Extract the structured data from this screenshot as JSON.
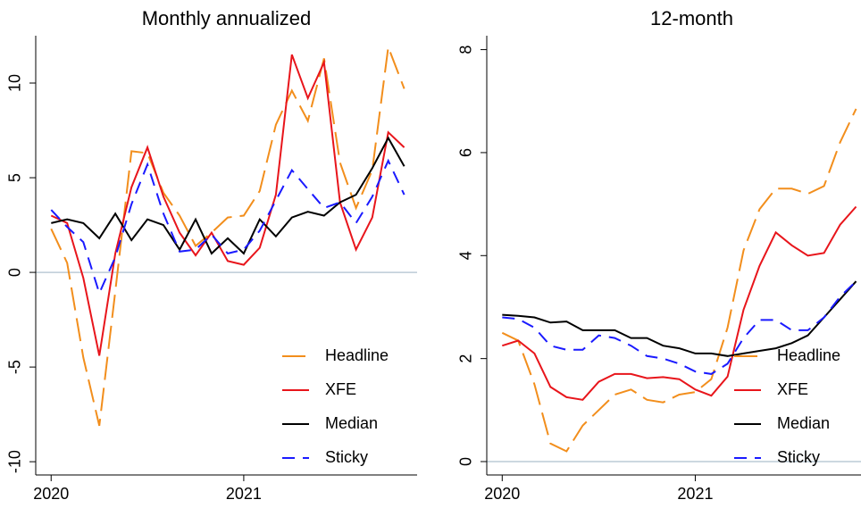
{
  "chart_data": [
    {
      "type": "line",
      "title": "Monthly annualized",
      "x": [
        2020,
        2020.083,
        2020.167,
        2020.25,
        2020.333,
        2020.417,
        2020.5,
        2020.583,
        2020.667,
        2020.75,
        2020.833,
        2020.917,
        2021,
        2021.083,
        2021.167,
        2021.25,
        2021.333,
        2021.417,
        2021.5,
        2021.583,
        2021.667,
        2021.75,
        2021.833
      ],
      "xlim": [
        2019.92,
        2021.9
      ],
      "xticks": [
        2020,
        2021
      ],
      "ylim": [
        -10.7,
        12.5
      ],
      "yticks": [
        -10,
        -5,
        0,
        5,
        10
      ],
      "legend": "lower right",
      "series": [
        {
          "name": "Headline",
          "color": "#f28e1c",
          "linestyle": "longdash",
          "values": [
            2.3,
            0.5,
            -4.5,
            -8.1,
            -1.0,
            6.4,
            6.3,
            4.2,
            3.0,
            1.4,
            2.1,
            2.9,
            3.0,
            4.3,
            7.8,
            9.6,
            8.0,
            11.3,
            5.8,
            3.4,
            5.4,
            11.9,
            9.7
          ]
        },
        {
          "name": "XFE",
          "color": "#e8151b",
          "linestyle": "solid",
          "values": [
            3.0,
            2.6,
            -0.3,
            -4.4,
            1.0,
            4.5,
            6.6,
            4.0,
            2.1,
            0.9,
            2.1,
            0.6,
            0.4,
            1.3,
            4.1,
            11.5,
            9.2,
            11.1,
            3.7,
            1.2,
            2.9,
            7.4,
            6.6
          ]
        },
        {
          "name": "Median",
          "color": "#000000",
          "linestyle": "solid",
          "values": [
            2.6,
            2.8,
            2.6,
            1.8,
            3.1,
            1.7,
            2.8,
            2.5,
            1.2,
            2.8,
            1.0,
            1.8,
            1.0,
            2.8,
            1.9,
            2.9,
            3.2,
            3.0,
            3.7,
            4.1,
            5.5,
            7.1,
            5.6
          ]
        },
        {
          "name": "Sticky",
          "color": "#1a1aff",
          "linestyle": "dash",
          "values": [
            3.3,
            2.4,
            1.6,
            -1.1,
            0.8,
            3.6,
            5.7,
            3.1,
            1.1,
            1.2,
            2.0,
            1.0,
            1.2,
            2.2,
            3.8,
            5.4,
            4.4,
            3.4,
            3.7,
            2.6,
            4.0,
            5.9,
            4.1
          ]
        }
      ]
    },
    {
      "type": "line",
      "title": "12-month",
      "x": [
        2020,
        2020.083,
        2020.167,
        2020.25,
        2020.333,
        2020.417,
        2020.5,
        2020.583,
        2020.667,
        2020.75,
        2020.833,
        2020.917,
        2021,
        2021.083,
        2021.167,
        2021.25,
        2021.333,
        2021.417,
        2021.5,
        2021.583,
        2021.667,
        2021.75,
        2021.833
      ],
      "xlim": [
        2019.92,
        2021.9
      ],
      "xticks": [
        2020,
        2021
      ],
      "ylim": [
        -0.26,
        8.27
      ],
      "yticks": [
        0,
        2,
        4,
        6,
        8
      ],
      "legend": "lower right",
      "series": [
        {
          "name": "Headline",
          "color": "#f28e1c",
          "linestyle": "longdash",
          "values": [
            2.5,
            2.35,
            1.5,
            0.35,
            0.2,
            0.7,
            1.0,
            1.3,
            1.4,
            1.2,
            1.15,
            1.3,
            1.35,
            1.6,
            2.6,
            4.1,
            4.9,
            5.3,
            5.3,
            5.2,
            5.35,
            6.2,
            6.85
          ]
        },
        {
          "name": "XFE",
          "color": "#e8151b",
          "linestyle": "solid",
          "values": [
            2.25,
            2.35,
            2.1,
            1.45,
            1.25,
            1.2,
            1.55,
            1.7,
            1.7,
            1.62,
            1.64,
            1.6,
            1.4,
            1.28,
            1.65,
            2.95,
            3.8,
            4.45,
            4.2,
            4.0,
            4.05,
            4.6,
            4.95
          ]
        },
        {
          "name": "Median",
          "color": "#000000",
          "linestyle": "solid",
          "values": [
            2.85,
            2.83,
            2.8,
            2.7,
            2.72,
            2.55,
            2.55,
            2.55,
            2.4,
            2.4,
            2.25,
            2.2,
            2.1,
            2.1,
            2.05,
            2.1,
            2.15,
            2.2,
            2.3,
            2.45,
            2.8,
            3.15,
            3.5
          ]
        },
        {
          "name": "Sticky",
          "color": "#1a1aff",
          "linestyle": "dash",
          "values": [
            2.8,
            2.77,
            2.6,
            2.25,
            2.17,
            2.17,
            2.45,
            2.4,
            2.25,
            2.05,
            2.0,
            1.9,
            1.75,
            1.7,
            1.9,
            2.4,
            2.75,
            2.75,
            2.55,
            2.55,
            2.8,
            3.2,
            3.5
          ]
        }
      ]
    }
  ]
}
